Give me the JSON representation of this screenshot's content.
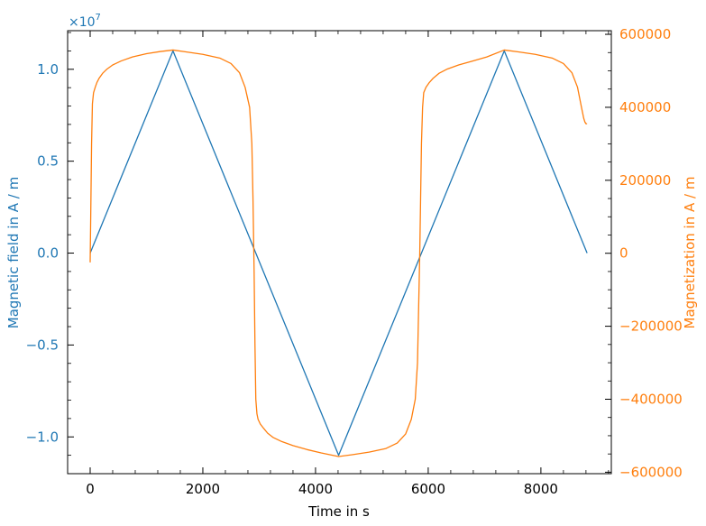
{
  "chart_data": {
    "type": "line",
    "title": "",
    "xlabel": "Time in s",
    "ylabel_left": "Magnetic field in A / m",
    "ylabel_right": "Magnetization in A / m",
    "xlim": [
      -400,
      9250
    ],
    "ylim_left": [
      -12000000,
      12100000
    ],
    "ylim_right": [
      -604000,
      610000
    ],
    "left_axis_multiplier": "×10",
    "left_axis_multiplier_exponent": "7",
    "x_ticks": [
      0,
      2000,
      4000,
      6000,
      8000
    ],
    "x_tick_labels": [
      "0",
      "2000",
      "4000",
      "6000",
      "8000"
    ],
    "left_ticks": [
      -10000000,
      -5000000,
      0,
      5000000,
      10000000
    ],
    "left_tick_labels": [
      "−1.0",
      "−0.5",
      "0.0",
      "0.5",
      "1.0"
    ],
    "right_ticks": [
      -600000,
      -400000,
      -200000,
      0,
      200000,
      400000,
      600000
    ],
    "right_tick_labels": [
      "−600000",
      "−400000",
      "−200000",
      "0",
      "200000",
      "400000",
      "600000"
    ],
    "grid": false,
    "colors": {
      "field": "#1f77b4",
      "magnetization": "#ff7f0e",
      "axis": "#000000"
    },
    "series": [
      {
        "axis": "left",
        "color": "#1f77b4",
        "x": [
          0,
          1470,
          4410,
          7350,
          8820
        ],
        "y": [
          0,
          11000000,
          -11000000,
          11000000,
          0
        ]
      },
      {
        "axis": "right",
        "color": "#ff7f0e",
        "x": [
          0,
          10,
          25,
          40,
          60,
          90,
          120,
          160,
          220,
          300,
          400,
          550,
          750,
          1000,
          1250,
          1470,
          1700,
          2000,
          2300,
          2500,
          2650,
          2750,
          2830,
          2870,
          2890,
          2910,
          2925,
          2940,
          2960,
          2980,
          3020,
          3080,
          3150,
          3250,
          3400,
          3600,
          3850,
          4100,
          4410,
          4650,
          4950,
          5250,
          5450,
          5600,
          5700,
          5770,
          5810,
          5830,
          5850,
          5865,
          5880,
          5900,
          5920,
          5960,
          6020,
          6090,
          6190,
          6340,
          6540,
          6790,
          7040,
          7350,
          7600,
          7900,
          8200,
          8400,
          8550,
          8650,
          8720,
          8760,
          8780,
          8800,
          8820
        ],
        "y": [
          -25000,
          100000,
          300000,
          410000,
          440000,
          455000,
          468000,
          480000,
          493000,
          505000,
          516000,
          527000,
          538000,
          547000,
          553000,
          557000,
          552000,
          545000,
          535000,
          520000,
          495000,
          455000,
          400000,
          300000,
          150000,
          -50000,
          -250000,
          -400000,
          -440000,
          -455000,
          -468000,
          -480000,
          -493000,
          -505000,
          -516000,
          -527000,
          -538000,
          -547000,
          -557000,
          -552000,
          -545000,
          -535000,
          -520000,
          -495000,
          -455000,
          -400000,
          -300000,
          -150000,
          0,
          150000,
          300000,
          400000,
          440000,
          455000,
          468000,
          480000,
          493000,
          505000,
          516000,
          527000,
          538000,
          557000,
          552000,
          545000,
          535000,
          520000,
          495000,
          455000,
          400000,
          370000,
          360000,
          355000,
          355000
        ]
      }
    ]
  }
}
